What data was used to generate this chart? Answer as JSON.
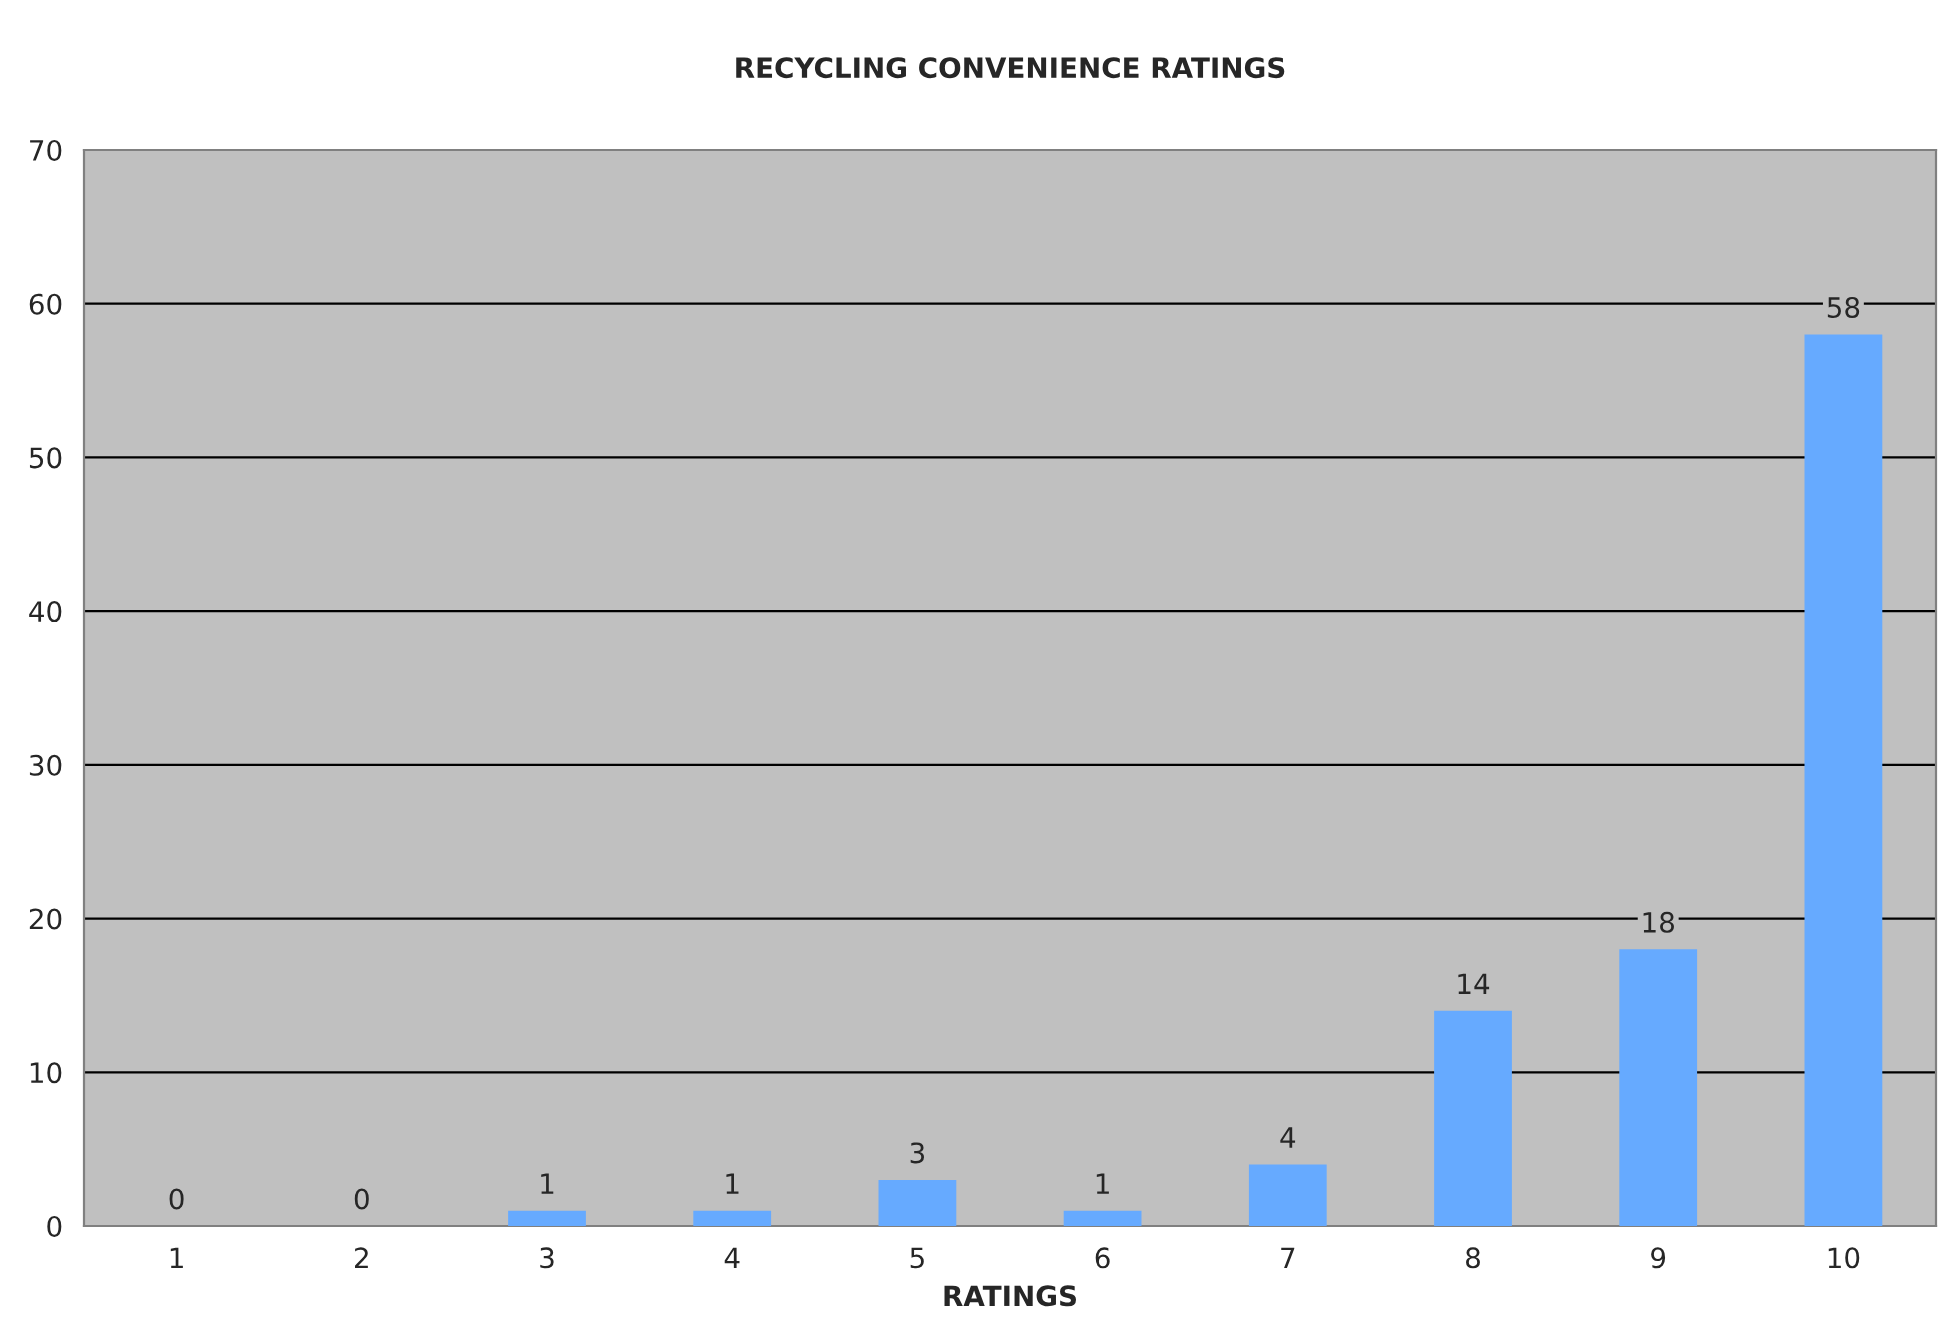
{
  "chart_data": {
    "type": "bar",
    "title": "RECYCLING CONVENIENCE RATINGS",
    "xlabel": "RATINGS",
    "categories": [
      "1",
      "2",
      "3",
      "4",
      "5",
      "6",
      "7",
      "8",
      "9",
      "10"
    ],
    "values": [
      0,
      0,
      1,
      1,
      3,
      1,
      4,
      14,
      18,
      58
    ],
    "color": "#66aaff",
    "ylim": [
      0,
      70
    ],
    "yticks": [
      0,
      10,
      20,
      30,
      40,
      50,
      60,
      70
    ],
    "grid": "y",
    "data_labels": true,
    "legend": false
  }
}
